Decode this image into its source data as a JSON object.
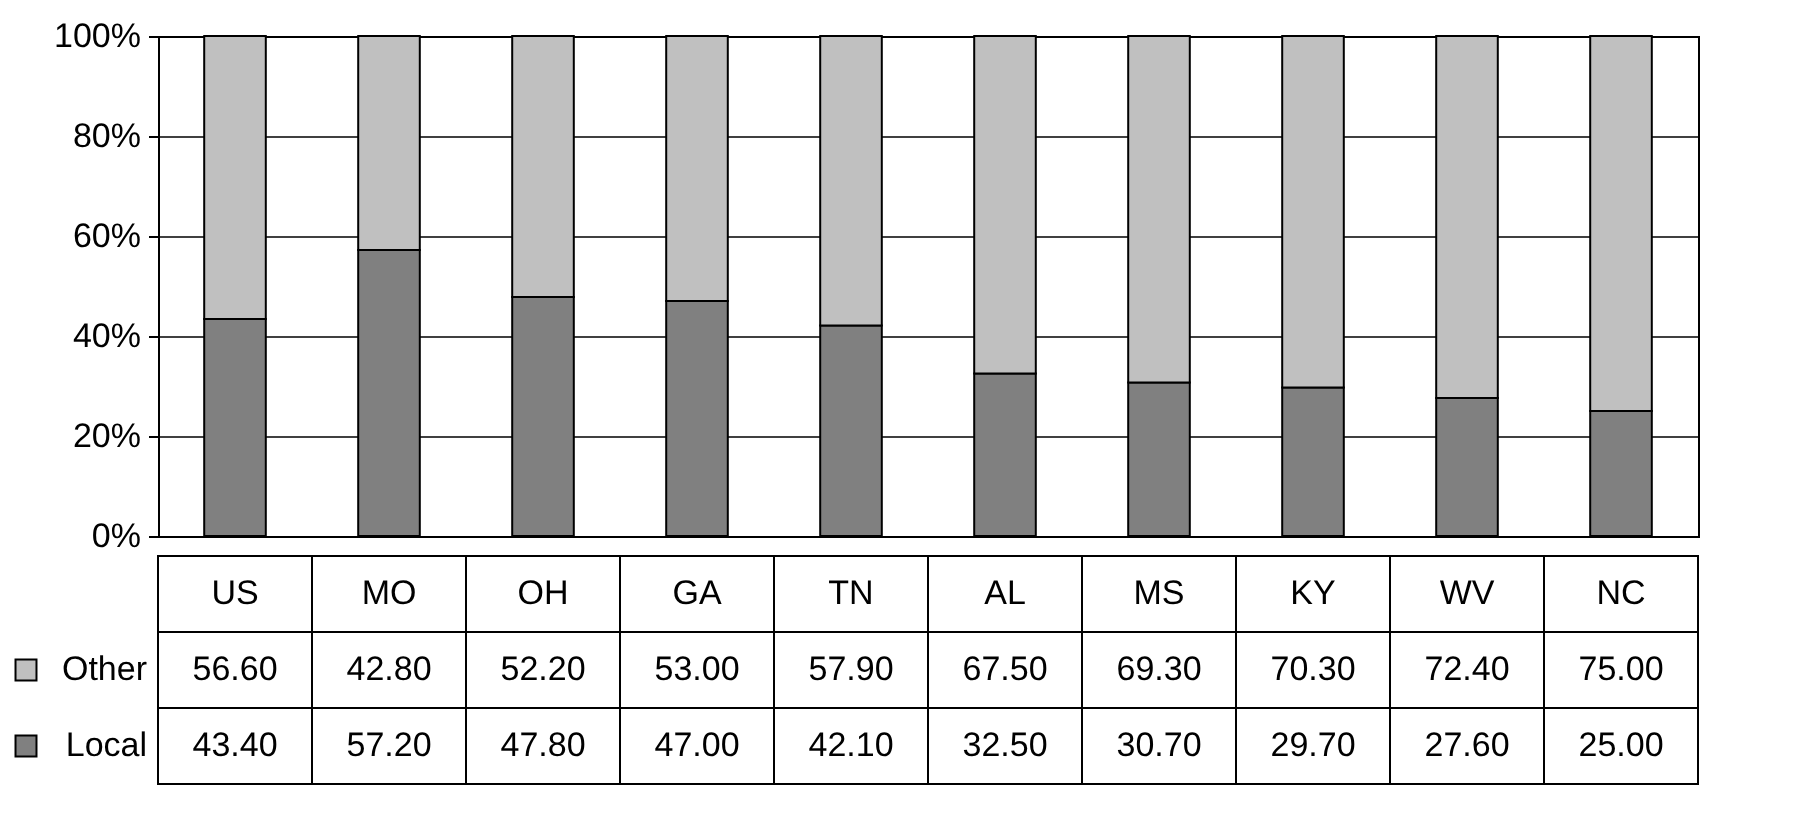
{
  "chart_data": {
    "type": "bar",
    "stacked": true,
    "categories": [
      "US",
      "MO",
      "OH",
      "GA",
      "TN",
      "AL",
      "MS",
      "KY",
      "WV",
      "NC"
    ],
    "series": [
      {
        "name": "Local",
        "color": "#808080",
        "values": [
          43.4,
          57.2,
          47.8,
          47.0,
          42.1,
          32.5,
          30.7,
          29.7,
          27.6,
          25.0
        ],
        "value_labels": [
          "43.40",
          "57.20",
          "47.80",
          "47.00",
          "42.10",
          "32.50",
          "30.70",
          "29.70",
          "27.60",
          "25.00"
        ]
      },
      {
        "name": "Other",
        "color": "#c0c0c0",
        "values": [
          56.6,
          42.8,
          52.2,
          53.0,
          57.9,
          67.5,
          69.3,
          70.3,
          72.4,
          75.0
        ],
        "value_labels": [
          "56.60",
          "42.80",
          "52.20",
          "53.00",
          "57.90",
          "67.50",
          "69.30",
          "70.30",
          "72.40",
          "75.00"
        ]
      }
    ],
    "ylim": [
      0,
      100
    ],
    "yticks": [
      {
        "value": 0,
        "label": "0%"
      },
      {
        "value": 20,
        "label": "20%"
      },
      {
        "value": 40,
        "label": "40%"
      },
      {
        "value": 60,
        "label": "60%"
      },
      {
        "value": 80,
        "label": "80%"
      },
      {
        "value": 100,
        "label": "100%"
      }
    ],
    "grid": "y",
    "legend": "bottom left"
  }
}
